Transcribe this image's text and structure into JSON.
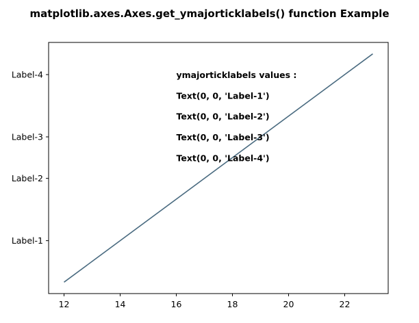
{
  "chart_data": {
    "type": "line",
    "title": "matplotlib.axes.Axes.get_ymajorticklabels() function Example",
    "xlabel": "",
    "ylabel": "",
    "xlim": [
      11.45,
      23.55
    ],
    "ylim": [
      11.45,
      23.55
    ],
    "x_ticks": [
      12,
      14,
      16,
      18,
      20,
      22
    ],
    "y_ticks": [
      {
        "value": 14,
        "label": "Label-1"
      },
      {
        "value": 17,
        "label": "Label-2"
      },
      {
        "value": 19,
        "label": "Label-3"
      },
      {
        "value": 22,
        "label": "Label-4"
      }
    ],
    "series": [
      {
        "x": [
          12,
          23
        ],
        "y": [
          12,
          23
        ],
        "color": "#4a6b80"
      }
    ],
    "annotations": [
      {
        "x": 16,
        "y": 22,
        "text": "ymajorticklabels values :"
      },
      {
        "x": 16,
        "y": 21,
        "text": "Text(0, 0, 'Label-1')"
      },
      {
        "x": 16,
        "y": 20,
        "text": "Text(0, 0, 'Label-2')"
      },
      {
        "x": 16,
        "y": 19,
        "text": "Text(0, 0, 'Label-3')"
      },
      {
        "x": 16,
        "y": 18,
        "text": "Text(0, 0, 'Label-4')"
      }
    ],
    "grid": false,
    "legend": "none"
  }
}
